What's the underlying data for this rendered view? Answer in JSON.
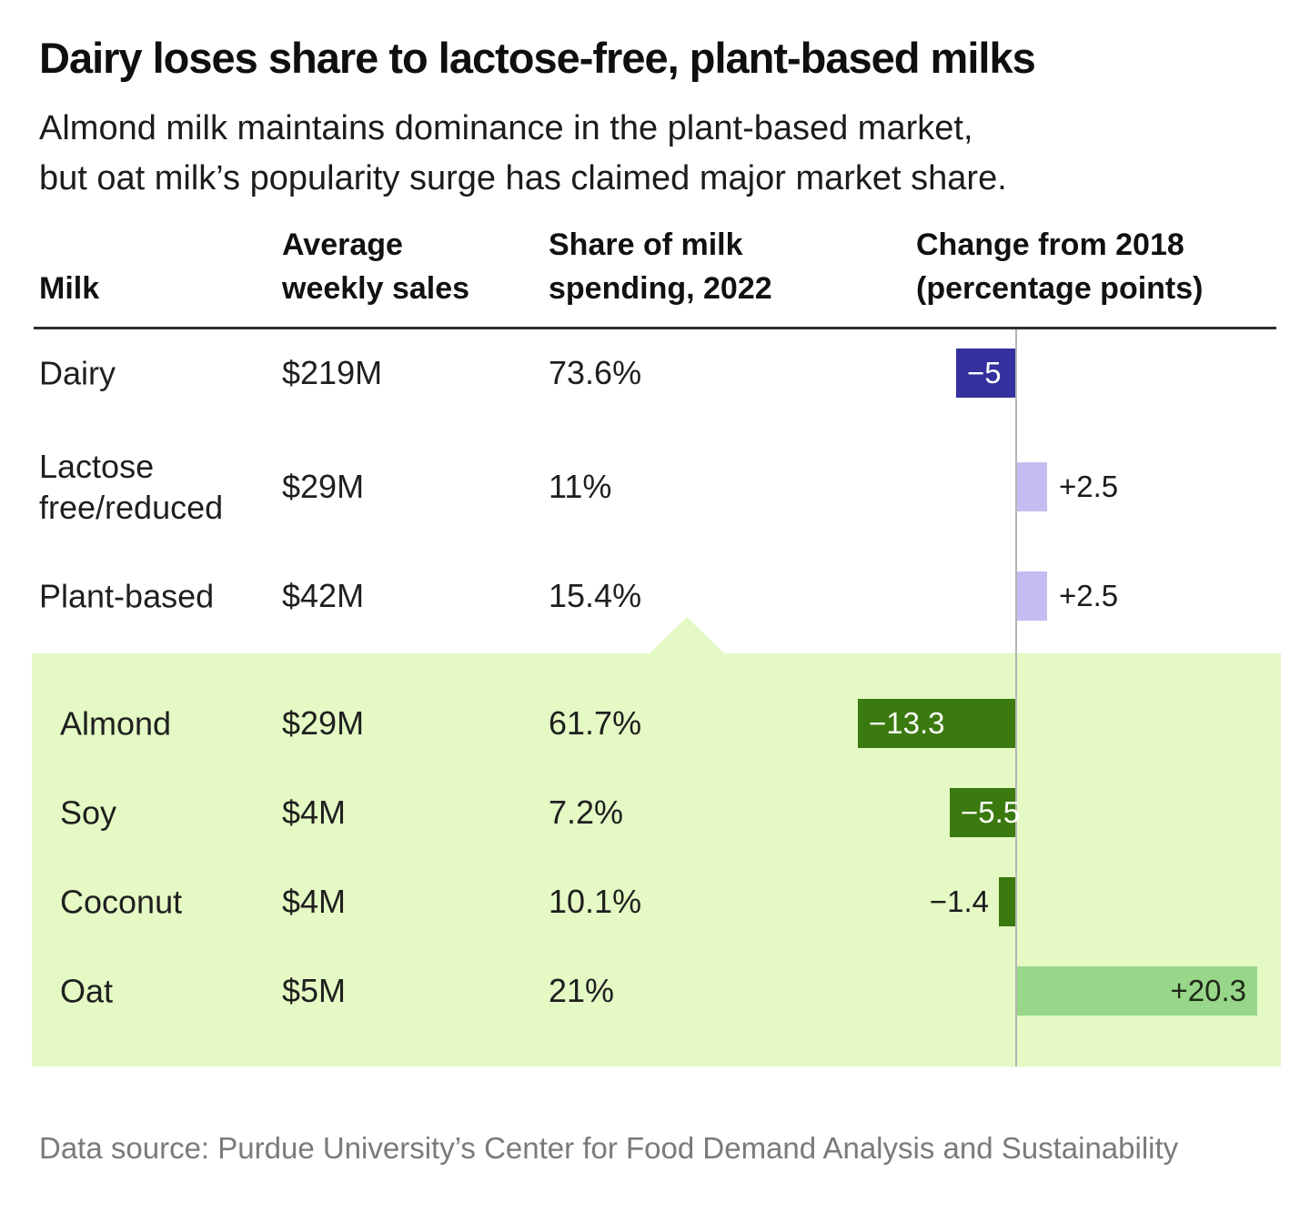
{
  "title": "Dairy loses share to lactose-free, plant-based milks",
  "subtitle": {
    "line1": "Almond milk maintains dominance in the plant-based market,",
    "line2": "but oat milk’s popularity surge has claimed major market share."
  },
  "columns": {
    "milk": "Milk",
    "sales": "Average weekly sales",
    "share": "Share of milk spending, 2022",
    "change": "Change from 2018 (percentage points)"
  },
  "footer": "Data source: Purdue University’s Center for Food Demand Analysis and Sustainability",
  "colors": {
    "rule": "#2e2e2e",
    "axis_line": "#b5b5b5",
    "highlight_panel": "#e4f9c4",
    "dairy_negative": "#34309d",
    "light_purple_positive": "#c3bdf1",
    "plant_negative_dark_green": "#3b7a0f",
    "oat_positive_green": "#98d78a",
    "footer_text": "#7a7a7a"
  },
  "chart_data": {
    "type": "bar",
    "orientation": "horizontal",
    "title": "Change from 2018 (percentage points)",
    "unit": "percentage points",
    "value_axis_zero_line": true,
    "legend": "none",
    "rows": [
      {
        "label": "Dairy",
        "sales": "$219M",
        "share": "73.6%",
        "change": -5,
        "change_label": "−5",
        "group": "total",
        "bar_color": "#34309d",
        "label_color": "#ffffff",
        "label_pos": "inside-left"
      },
      {
        "label": "Lactose free/reduced",
        "sales": "$29M",
        "share": "11%",
        "change": 2.5,
        "change_label": "+2.5",
        "group": "total",
        "bar_color": "#c3bdf1",
        "label_color": "#1a1a1a",
        "label_pos": "outside-right"
      },
      {
        "label": "Plant-based",
        "sales": "$42M",
        "share": "15.4%",
        "change": 2.5,
        "change_label": "+2.5",
        "group": "total",
        "bar_color": "#c3bdf1",
        "label_color": "#1a1a1a",
        "label_pos": "outside-right"
      },
      {
        "label": "Almond",
        "sales": "$29M",
        "share": "61.7%",
        "change": -13.3,
        "change_label": "−13.3",
        "group": "plant-based",
        "bar_color": "#3b7a0f",
        "label_color": "#ffffff",
        "label_pos": "inside-left"
      },
      {
        "label": "Soy",
        "sales": "$4M",
        "share": "7.2%",
        "change": -5.5,
        "change_label": "−5.5",
        "group": "plant-based",
        "bar_color": "#3b7a0f",
        "label_color": "#ffffff",
        "label_pos": "inside-left"
      },
      {
        "label": "Coconut",
        "sales": "$4M",
        "share": "10.1%",
        "change": -1.4,
        "change_label": "−1.4",
        "group": "plant-based",
        "bar_color": "#3b7a0f",
        "label_color": "#1a1a1a",
        "label_pos": "outside-left"
      },
      {
        "label": "Oat",
        "sales": "$5M",
        "share": "21%",
        "change": 20.3,
        "change_label": "+20.3",
        "group": "plant-based",
        "bar_color": "#98d78a",
        "label_color": "#1f2a17",
        "label_pos": "inside-right"
      }
    ]
  }
}
